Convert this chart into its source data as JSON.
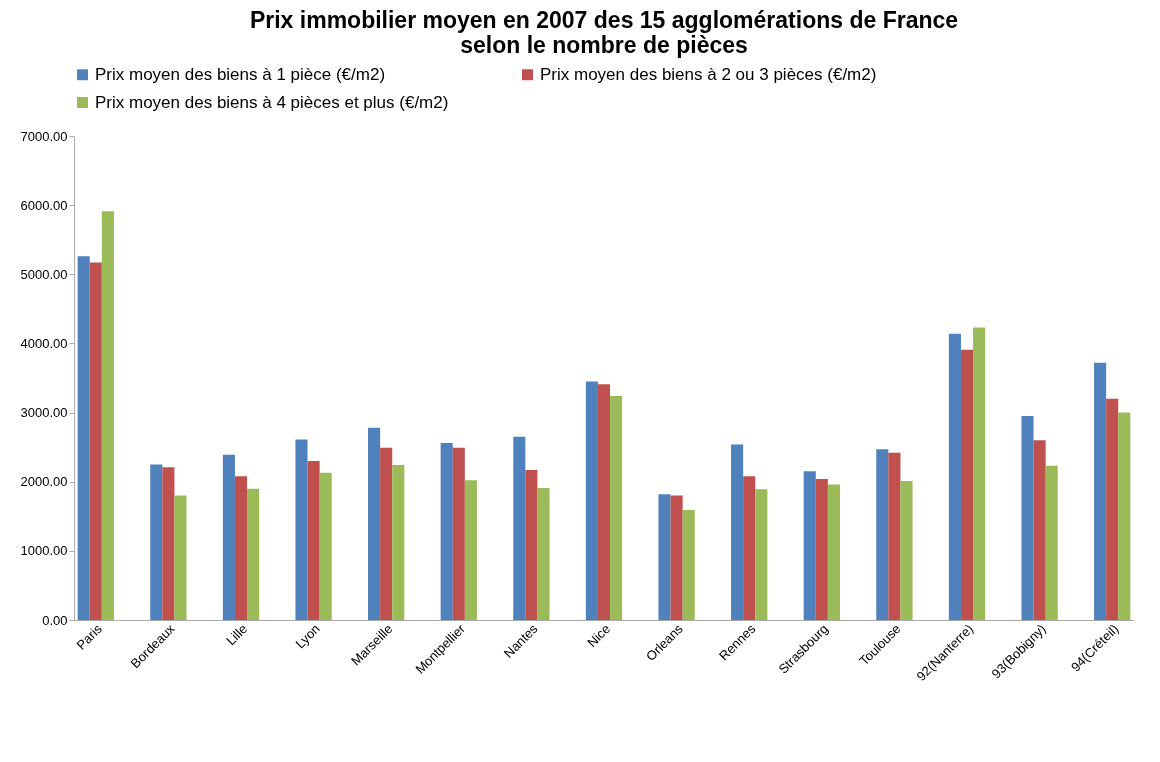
{
  "chart_data": {
    "type": "bar",
    "title": "Prix immobilier moyen en 2007 des 15 agglomérations de France\nselon le nombre de pièces",
    "categories": [
      "Paris",
      "Bordeaux",
      "Lille",
      "Lyon",
      "Marseille",
      "Montpellier",
      "Nantes",
      "Nice",
      "Orleans",
      "Rennes",
      "Strasbourg",
      "Toulouse",
      "92(Nanterre)",
      "93(Bobigny)",
      "94(Créteil)"
    ],
    "series": [
      {
        "name": "Prix moyen des biens à 1 pièce (€/m2)",
        "color": "#4f81bd",
        "values": [
          5260,
          2250,
          2390,
          2610,
          2780,
          2560,
          2650,
          3450,
          1820,
          2540,
          2150,
          2470,
          4140,
          2950,
          3720
        ]
      },
      {
        "name": "Prix moyen des biens à 2 ou 3 pièces (€/m2)",
        "color": "#c0504d",
        "values": [
          5170,
          2210,
          2080,
          2300,
          2490,
          2490,
          2170,
          3410,
          1800,
          2080,
          2040,
          2420,
          3910,
          2600,
          3200
        ]
      },
      {
        "name": "Prix moyen des biens à 4 pièces et plus (€/m2)",
        "color": "#9bbb59",
        "values": [
          5910,
          1800,
          1900,
          2130,
          2240,
          2020,
          1910,
          3240,
          1590,
          1890,
          1960,
          2010,
          4230,
          2230,
          3000
        ]
      }
    ],
    "ylim": [
      0,
      7000
    ],
    "yticks": [
      {
        "value": 0,
        "label": "0.00"
      },
      {
        "value": 1000,
        "label": "1000.00"
      },
      {
        "value": 2000,
        "label": "2000.00"
      },
      {
        "value": 3000,
        "label": "3000.00"
      },
      {
        "value": 4000,
        "label": "4000.00"
      },
      {
        "value": 5000,
        "label": "5000.00"
      },
      {
        "value": 6000,
        "label": "6000.00"
      },
      {
        "value": 7000,
        "label": "7000.00"
      }
    ],
    "grid": false,
    "legend": "top"
  }
}
